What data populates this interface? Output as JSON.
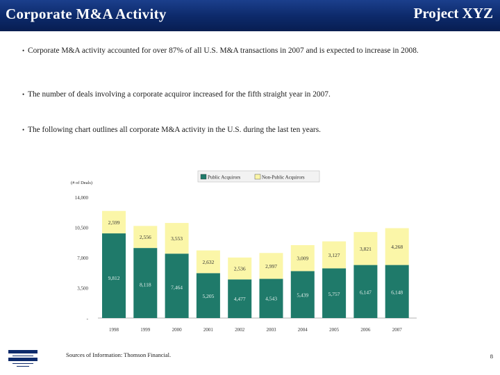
{
  "header": {
    "title": "Corporate M&A Activity",
    "project": "Project XYZ"
  },
  "bullets": [
    "Corporate M&A activity accounted for over 87% of all U.S. M&A transactions in 2007 and is expected to increase in 2008.",
    "The number of deals involving a corporate acquiror increased for the fifth straight year in 2007.",
    "The following chart outlines all corporate M&A activity in the U.S. during the last ten years."
  ],
  "footer": {
    "source": "Sources of Information: Thomson Financial.",
    "page": "8"
  },
  "colors": {
    "header": "#0d2a6b",
    "public": "#1f7a6a",
    "nonpublic": "#fbf6a8"
  },
  "chart_data": {
    "type": "bar",
    "stacked": true,
    "ylabel": "(# of Deals)",
    "categories": [
      "1998",
      "1999",
      "2000",
      "2001",
      "2002",
      "2003",
      "2004",
      "2005",
      "2006",
      "2007"
    ],
    "series": [
      {
        "name": "Public Acquirors",
        "values": [
          9812,
          8118,
          7464,
          5205,
          4477,
          4543,
          5439,
          5757,
          6147,
          6148
        ]
      },
      {
        "name": "Non-Public Acquirors",
        "values": [
          2599,
          2556,
          3553,
          2632,
          2536,
          2997,
          3009,
          3127,
          3821,
          4268
        ]
      }
    ],
    "yticks": [
      "14,000",
      "10,500",
      "7,000",
      "3,500",
      "-"
    ],
    "ylim": [
      0,
      14000
    ],
    "legend_position": "top",
    "grid": false
  }
}
